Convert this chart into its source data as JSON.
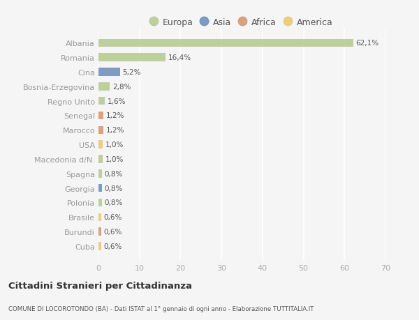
{
  "title": "Cittadini Stranieri per Cittadinanza",
  "subtitle": "COMUNE DI LOCOROTONDO (BA) - Dati ISTAT al 1° gennaio di ogni anno - Elaborazione TUTTITALIA.IT",
  "countries": [
    "Albania",
    "Romania",
    "Cina",
    "Bosnia-Erzegovina",
    "Regno Unito",
    "Senegal",
    "Marocco",
    "USA",
    "Macedonia d/N.",
    "Spagna",
    "Georgia",
    "Polonia",
    "Brasile",
    "Burundi",
    "Cuba"
  ],
  "values": [
    62.1,
    16.4,
    5.2,
    2.8,
    1.6,
    1.2,
    1.2,
    1.0,
    1.0,
    0.8,
    0.8,
    0.8,
    0.6,
    0.6,
    0.6
  ],
  "labels": [
    "62,1%",
    "16,4%",
    "5,2%",
    "2,8%",
    "1,6%",
    "1,2%",
    "1,2%",
    "1,0%",
    "1,0%",
    "0,8%",
    "0,8%",
    "0,8%",
    "0,6%",
    "0,6%",
    "0,6%"
  ],
  "continents": [
    "Europa",
    "Europa",
    "Asia",
    "Europa",
    "Europa",
    "Africa",
    "Africa",
    "America",
    "Europa",
    "Europa",
    "Asia",
    "Europa",
    "America",
    "Africa",
    "America"
  ],
  "continent_colors": {
    "Europa": "#b5c98e",
    "Asia": "#6b8cba",
    "Africa": "#d4956a",
    "America": "#e8c96a"
  },
  "legend_order": [
    "Europa",
    "Asia",
    "Africa",
    "America"
  ],
  "xlim": [
    0,
    70
  ],
  "xticks": [
    0,
    10,
    20,
    30,
    40,
    50,
    60,
    70
  ],
  "background_color": "#f5f5f5",
  "grid_color": "#ffffff",
  "bar_height": 0.55
}
